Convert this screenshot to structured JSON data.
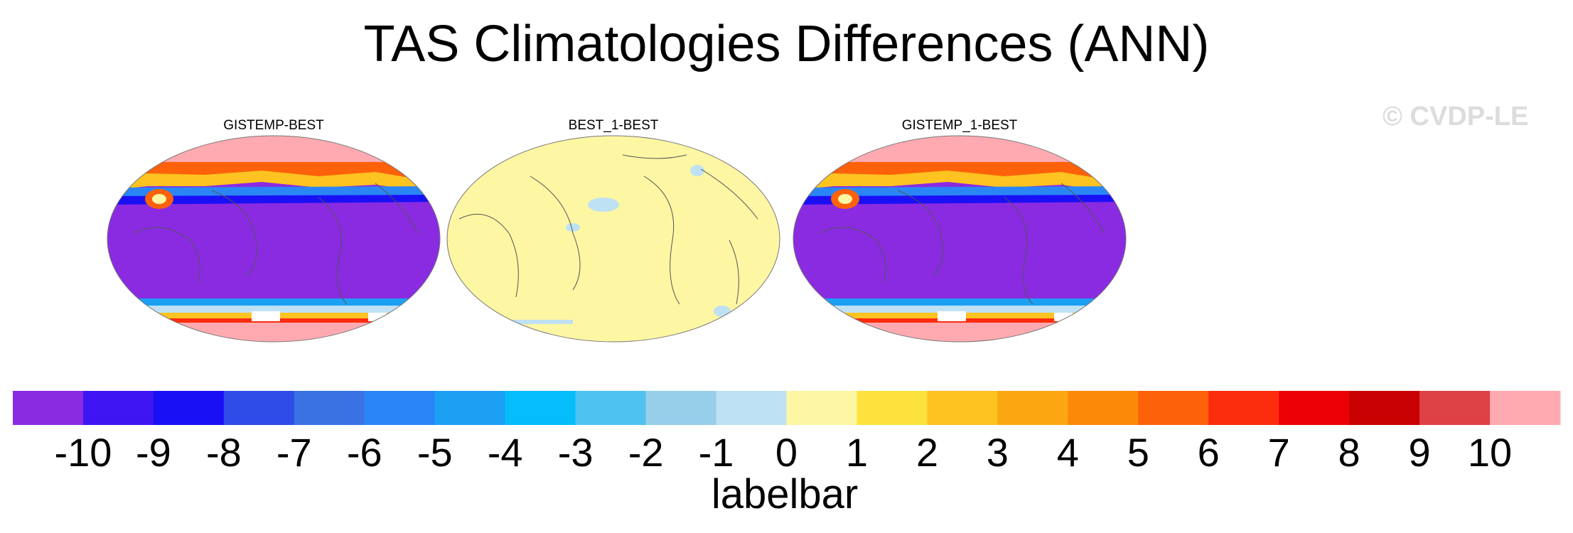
{
  "title": "TAS Climatologies Differences (ANN)",
  "watermark": "© CVDP-LE",
  "panels": [
    {
      "title": "GISTEMP-BEST",
      "pattern": "large-negative-with-polar-positive",
      "background_color": "#8a2be2",
      "north_color": "#ffaab0",
      "south_color": "#ffaab0"
    },
    {
      "title": "BEST_1-BEST",
      "pattern": "near-zero",
      "background_color": "#fdf6a3",
      "north_color": "#fdf6a3",
      "south_color": "#fdf6a3"
    },
    {
      "title": "GISTEMP_1-BEST",
      "pattern": "large-negative-with-polar-positive",
      "background_color": "#8a2be2",
      "north_color": "#ffaab0",
      "south_color": "#ffaab0"
    }
  ],
  "labelbar": {
    "label": "labelbar",
    "ticks": [
      "-10",
      "-9",
      "-8",
      "-7",
      "-6",
      "-5",
      "-4",
      "-3",
      "-2",
      "-1",
      "0",
      "1",
      "2",
      "3",
      "4",
      "5",
      "6",
      "7",
      "8",
      "9",
      "10"
    ],
    "colors": [
      "#8a2be2",
      "#3f15f3",
      "#1a10f6",
      "#2f4ce8",
      "#3a72e4",
      "#2a86f6",
      "#1ca0f4",
      "#05bdfa",
      "#4fc3f0",
      "#97cfeb",
      "#bfe1f4",
      "#fdf6a3",
      "#fde23e",
      "#fdc321",
      "#fca711",
      "#fc8a08",
      "#fd6109",
      "#fc2d0d",
      "#ec0206",
      "#c90002",
      "#de4146",
      "#ffaab0"
    ]
  }
}
